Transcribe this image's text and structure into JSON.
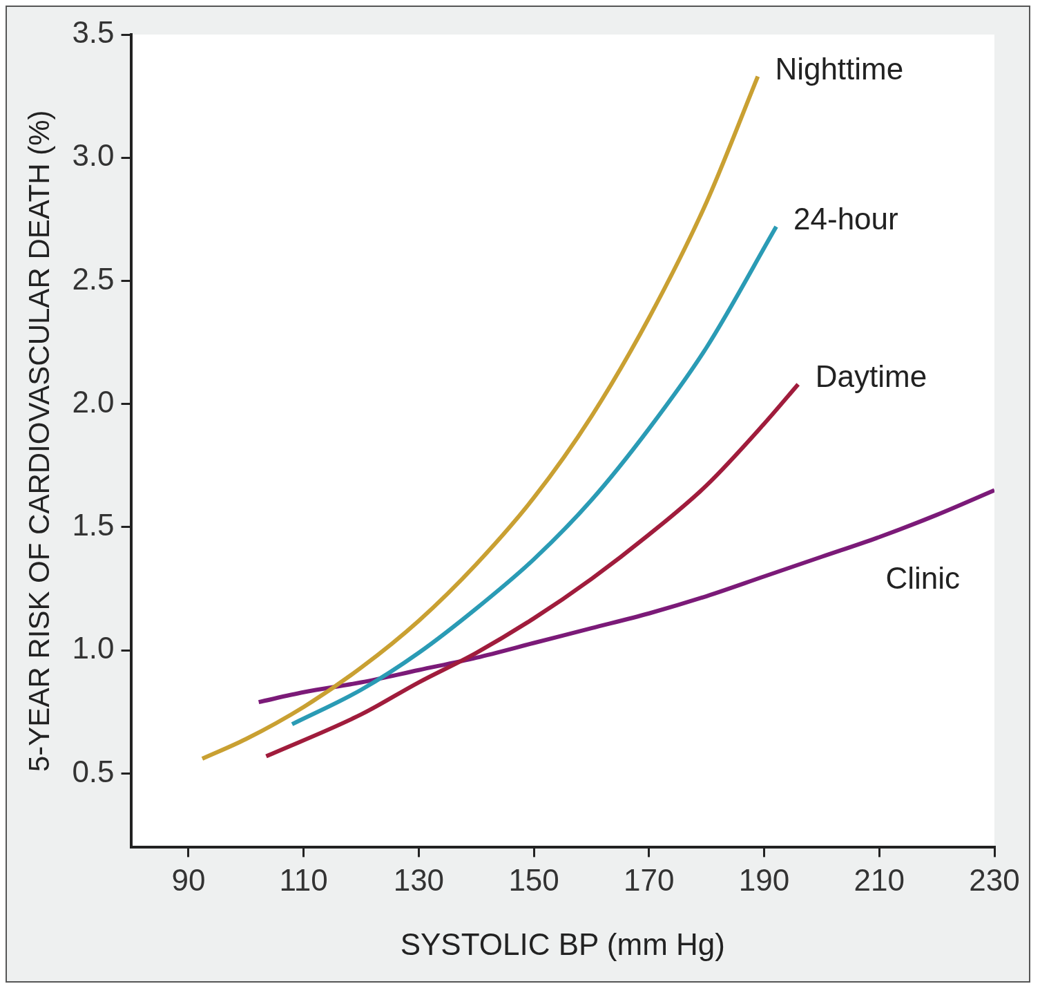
{
  "chart_data": {
    "type": "line",
    "xlabel": "SYSTOLIC BP (mm Hg)",
    "ylabel": "5-YEAR RISK OF CARDIOVASCULAR DEATH (%)",
    "xlim": [
      80,
      230
    ],
    "xticks": [
      90,
      110,
      130,
      150,
      170,
      190,
      210,
      230
    ],
    "ylim": [
      0.2,
      3.5
    ],
    "yticks": [
      {
        "value": 0.5,
        "label": "0.5"
      },
      {
        "value": 1,
        "label": "1.0"
      },
      {
        "value": 1.5,
        "label": "1.5"
      },
      {
        "value": 2,
        "label": "2.0"
      },
      {
        "value": 2.5,
        "label": "2.5"
      },
      {
        "value": 3,
        "label": "3.0"
      },
      {
        "value": 3.5,
        "label": "3.5"
      }
    ],
    "grid": false,
    "legend": false,
    "marker": "none",
    "line_style": "solid",
    "series": [
      {
        "name": "Nighttime",
        "color": "#c9a032",
        "x": [
          92.4,
          100,
          110,
          120,
          130,
          140,
          150,
          160,
          170,
          180,
          188.9
        ],
        "values": [
          0.56,
          0.64,
          0.77,
          0.93,
          1.12,
          1.35,
          1.62,
          1.95,
          2.35,
          2.82,
          3.33
        ]
      },
      {
        "name": "24-hour",
        "color": "#2a9bb5",
        "x": [
          108,
          120,
          130,
          140,
          150,
          160,
          170,
          180,
          192.1
        ],
        "values": [
          0.7,
          0.84,
          0.99,
          1.17,
          1.37,
          1.61,
          1.9,
          2.23,
          2.72
        ]
      },
      {
        "name": "Daytime",
        "color": "#a01c3c",
        "x": [
          103.5,
          120,
          130,
          140,
          150,
          160,
          170,
          180,
          190,
          195.9
        ],
        "values": [
          0.57,
          0.74,
          0.87,
          0.99,
          1.13,
          1.29,
          1.47,
          1.67,
          1.92,
          2.08
        ]
      },
      {
        "name": "Clinic",
        "color": "#7b1a78",
        "x": [
          102.2,
          110,
          120,
          130,
          140,
          150,
          160,
          170,
          180,
          190,
          200,
          210,
          220,
          230
        ],
        "values": [
          0.79,
          0.83,
          0.87,
          0.92,
          0.97,
          1.03,
          1.09,
          1.15,
          1.22,
          1.3,
          1.38,
          1.46,
          1.55,
          1.65
        ]
      }
    ]
  }
}
